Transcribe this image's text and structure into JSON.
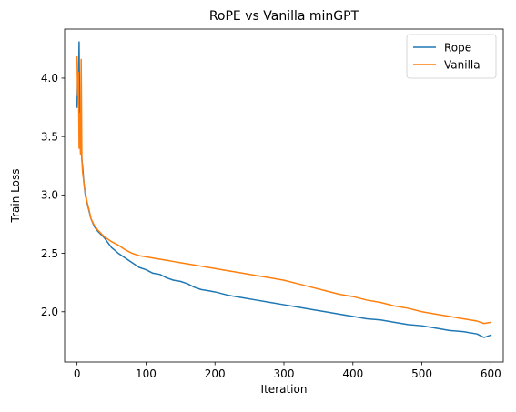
{
  "chart_data": {
    "type": "line",
    "title": "RoPE vs Vanilla minGPT",
    "xlabel": "Iteration",
    "ylabel": "Train Loss",
    "xlim": [
      -18,
      618
    ],
    "ylim": [
      1.57,
      4.42
    ],
    "xticks": [
      0,
      100,
      200,
      300,
      400,
      500,
      600
    ],
    "xtick_labels": [
      "0",
      "100",
      "200",
      "300",
      "400",
      "500",
      "600"
    ],
    "yticks": [
      2.0,
      2.5,
      3.0,
      3.5,
      4.0
    ],
    "ytick_labels": [
      "2.0",
      "2.5",
      "3.0",
      "3.5",
      "4.0"
    ],
    "legend_position": "top-right",
    "grid": false,
    "series": [
      {
        "name": "Rope",
        "color": "#1f77b4",
        "x": [
          0,
          1,
          2,
          3,
          4,
          5,
          6,
          7,
          8,
          10,
          12,
          15,
          18,
          20,
          25,
          30,
          35,
          40,
          45,
          50,
          60,
          70,
          80,
          90,
          100,
          110,
          120,
          130,
          140,
          150,
          160,
          170,
          180,
          190,
          200,
          220,
          240,
          260,
          280,
          300,
          320,
          340,
          360,
          380,
          400,
          420,
          440,
          460,
          480,
          500,
          520,
          540,
          560,
          580,
          590,
          600
        ],
        "y": [
          3.75,
          4.05,
          3.85,
          4.31,
          3.55,
          3.38,
          3.45,
          3.3,
          3.25,
          3.1,
          3.0,
          2.92,
          2.85,
          2.8,
          2.73,
          2.69,
          2.66,
          2.63,
          2.59,
          2.55,
          2.5,
          2.46,
          2.42,
          2.38,
          2.36,
          2.33,
          2.32,
          2.29,
          2.27,
          2.26,
          2.24,
          2.21,
          2.19,
          2.18,
          2.17,
          2.14,
          2.12,
          2.1,
          2.08,
          2.06,
          2.04,
          2.02,
          2.0,
          1.98,
          1.96,
          1.94,
          1.93,
          1.91,
          1.89,
          1.88,
          1.86,
          1.84,
          1.83,
          1.81,
          1.78,
          1.8
        ]
      },
      {
        "name": "Vanilla",
        "color": "#ff7f0e",
        "x": [
          0,
          1,
          2,
          3,
          4,
          5,
          6,
          7,
          8,
          10,
          12,
          15,
          18,
          20,
          25,
          30,
          35,
          40,
          45,
          50,
          60,
          70,
          80,
          90,
          100,
          110,
          120,
          130,
          140,
          150,
          160,
          170,
          180,
          190,
          200,
          220,
          240,
          260,
          280,
          300,
          320,
          340,
          360,
          380,
          400,
          420,
          440,
          460,
          480,
          500,
          520,
          540,
          560,
          580,
          590,
          600
        ],
        "y": [
          4.18,
          3.85,
          4.05,
          3.4,
          3.7,
          3.35,
          4.16,
          3.3,
          3.2,
          3.1,
          3.02,
          2.93,
          2.86,
          2.8,
          2.74,
          2.7,
          2.67,
          2.64,
          2.62,
          2.6,
          2.57,
          2.53,
          2.5,
          2.48,
          2.47,
          2.46,
          2.45,
          2.44,
          2.43,
          2.42,
          2.41,
          2.4,
          2.39,
          2.38,
          2.37,
          2.35,
          2.33,
          2.31,
          2.29,
          2.27,
          2.24,
          2.21,
          2.18,
          2.15,
          2.13,
          2.1,
          2.08,
          2.05,
          2.03,
          2.0,
          1.98,
          1.96,
          1.94,
          1.92,
          1.9,
          1.91
        ]
      }
    ]
  }
}
